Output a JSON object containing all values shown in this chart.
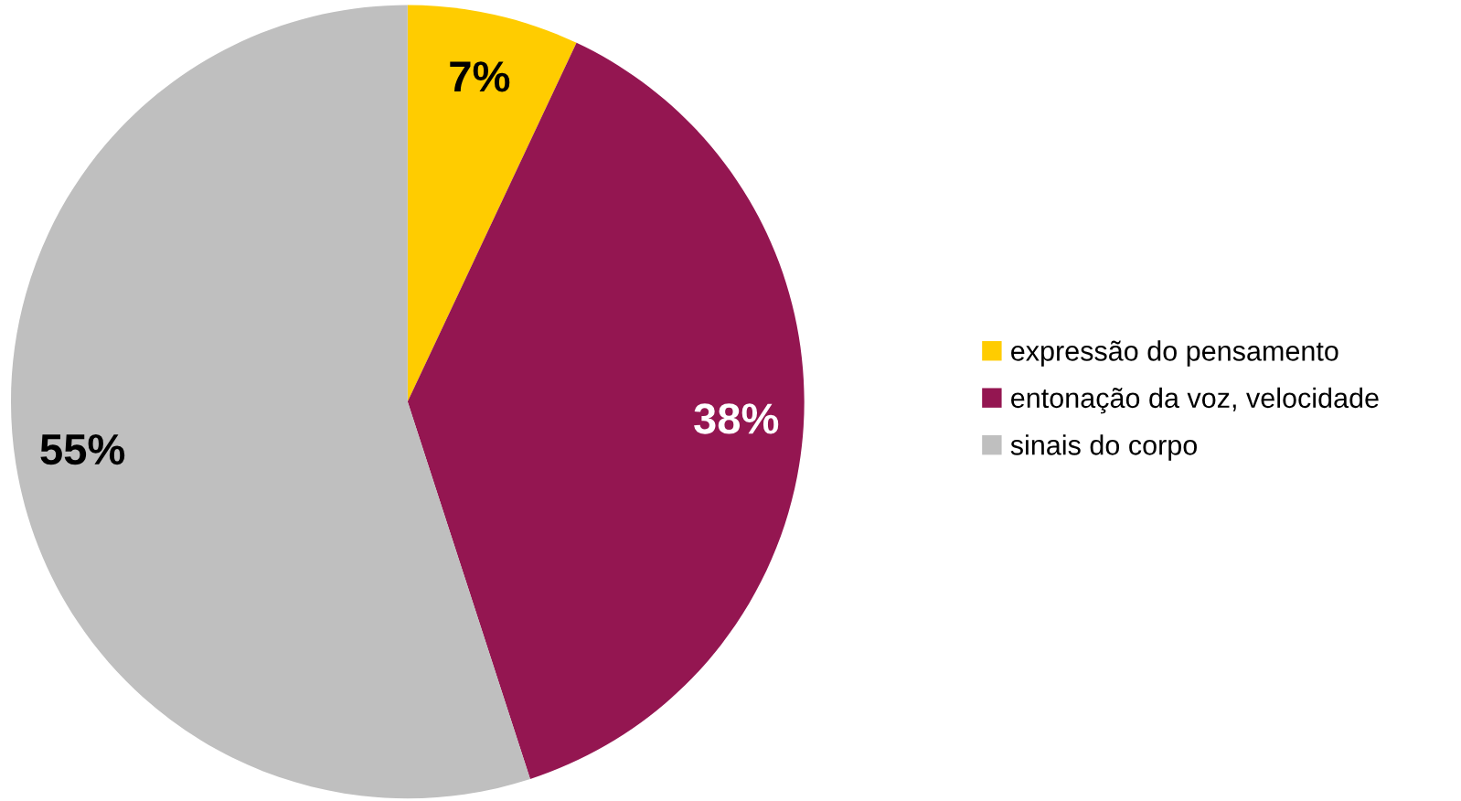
{
  "chart_data": {
    "type": "pie",
    "categories": [
      "expressão do pensamento",
      "entonação da voz, velocidade",
      "sinais do corpo"
    ],
    "values": [
      7,
      38,
      55
    ],
    "colors": [
      "#ffcc00",
      "#941651",
      "#bfbfbf"
    ],
    "data_labels": true,
    "value_labels": [
      "7%",
      "38%",
      "55%"
    ],
    "legend": "right"
  }
}
